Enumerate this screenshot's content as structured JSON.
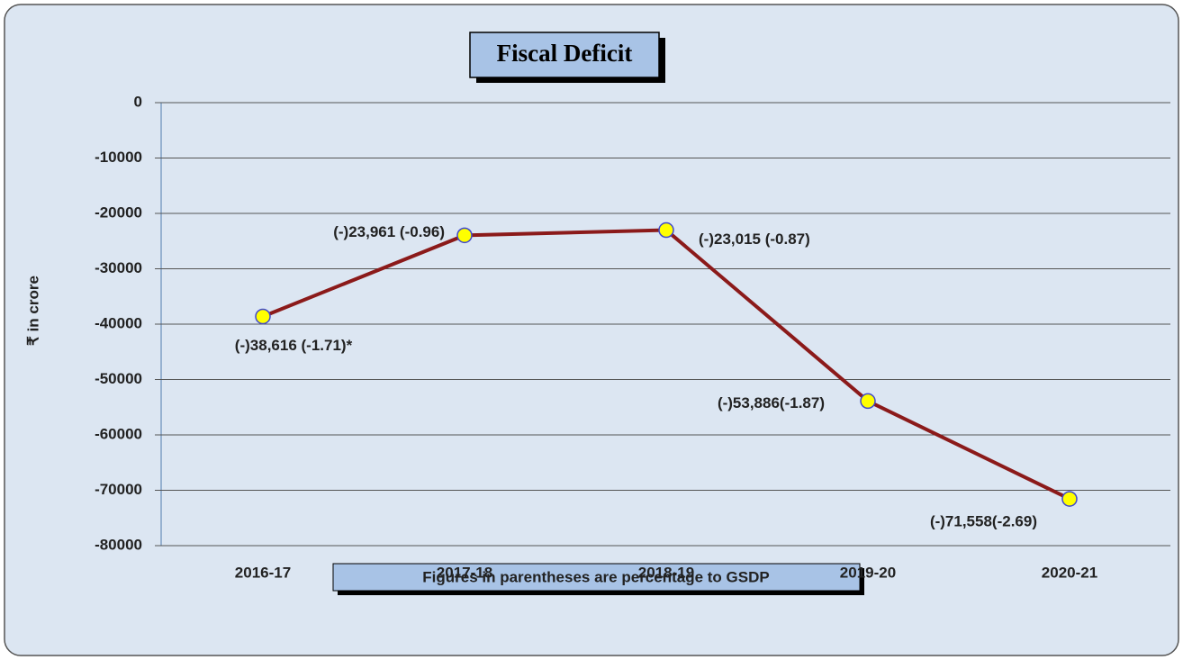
{
  "chart_data": {
    "type": "line",
    "title": "Fiscal Deficit",
    "y_label": "₹ in crore",
    "annotation": "Figures in parentheses are percentage to GSDP",
    "categories": [
      "2016-17",
      "2017-18",
      "2018-19",
      "2019-20",
      "2020-21"
    ],
    "series": [
      {
        "name": "Fiscal Deficit",
        "color": "#8b1a1a",
        "marker_color": "#ffff00",
        "values": [
          -38616,
          -23961,
          -23015,
          -53886,
          -71558
        ],
        "value_labels": [
          "(-)38,616 (-1.71)*",
          "(-)23,961 (-0.96)",
          "(-)23,015 (-0.87)",
          "(-)53,886(-1.87)",
          "(-)71,558(-2.69)"
        ]
      }
    ],
    "ylim": [
      -80000,
      0
    ],
    "yticks": [
      0,
      -10000,
      -20000,
      -30000,
      -40000,
      -50000,
      -60000,
      -70000,
      -80000
    ],
    "grid": true
  }
}
